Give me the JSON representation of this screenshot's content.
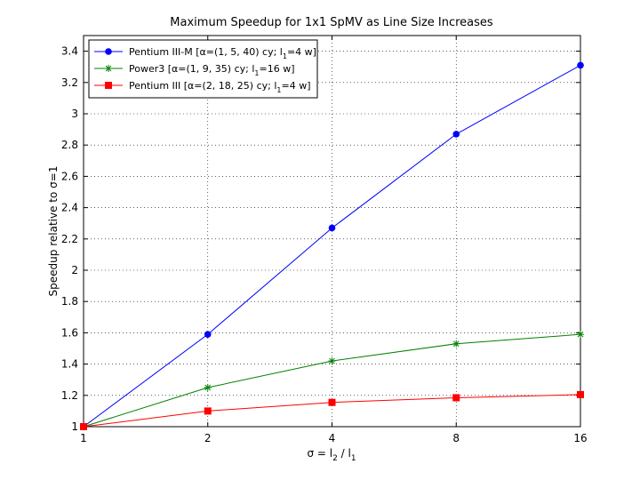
{
  "chart_data": {
    "type": "line",
    "title": "Maximum Speedup for 1x1 SpMV as Line Size Increases",
    "xlabel": {
      "main": "σ = l",
      "sub1": "2",
      "mid": " / l",
      "sub2": "1"
    },
    "ylabel": "Speedup relative to σ=1",
    "x_scale": "log2",
    "x": [
      1,
      2,
      4,
      8,
      16
    ],
    "x_ticks": [
      "1",
      "2",
      "4",
      "8",
      "16"
    ],
    "ylim": [
      1,
      3.5
    ],
    "y_ticks": [
      "1",
      "1.2",
      "1.4",
      "1.6",
      "1.8",
      "2",
      "2.2",
      "2.4",
      "2.6",
      "2.8",
      "3",
      "3.2",
      "3.4"
    ],
    "grid": true,
    "legend_position": "top-left",
    "series": [
      {
        "name": {
          "pre": "Pentium III-M [α=(1, 5, 40) cy; l",
          "sub": "1",
          "post": "=4 w]"
        },
        "color": "#0000ff",
        "marker": "circle",
        "values": [
          1.0,
          1.59,
          2.27,
          2.87,
          3.31
        ]
      },
      {
        "name": {
          "pre": "Power3 [α=(1, 9, 35) cy; l",
          "sub": "1",
          "post": "=16 w]"
        },
        "color": "#008000",
        "marker": "star",
        "values": [
          1.0,
          1.25,
          1.42,
          1.53,
          1.59
        ]
      },
      {
        "name": {
          "pre": "Pentium III [α=(2, 18, 25) cy; l",
          "sub": "1",
          "post": "=4 w]"
        },
        "color": "#ff0000",
        "marker": "square",
        "values": [
          1.0,
          1.1,
          1.155,
          1.185,
          1.205
        ]
      }
    ]
  }
}
